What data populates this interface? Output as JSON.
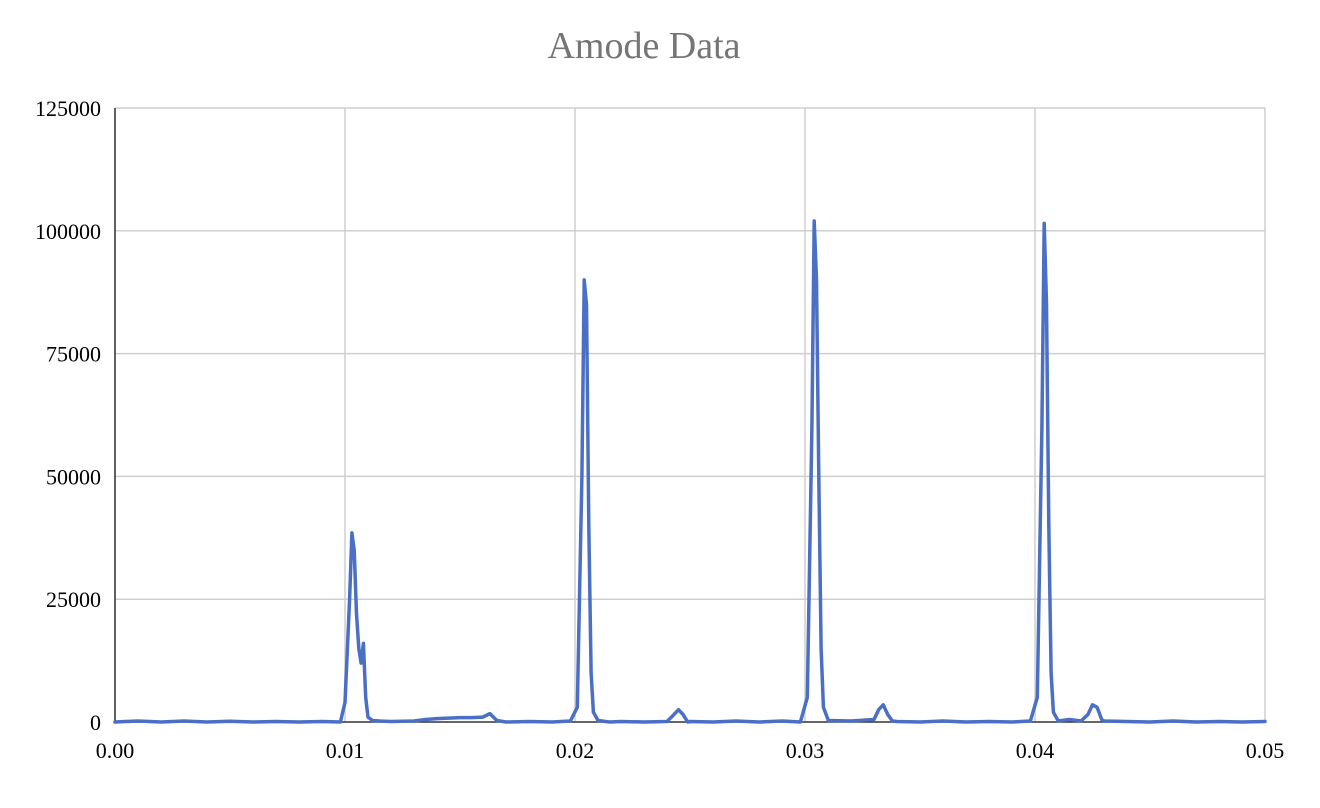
{
  "chart_data": {
    "type": "line",
    "title": "Amode Data",
    "xlabel": "",
    "ylabel": "",
    "xlim": [
      0,
      0.05
    ],
    "ylim": [
      0,
      125000
    ],
    "xticks": [
      0,
      0.01,
      0.02,
      0.03,
      0.04,
      0.05
    ],
    "xtick_labels": [
      "0.00",
      "0.01",
      "0.02",
      "0.03",
      "0.04",
      "0.05"
    ],
    "yticks": [
      0,
      25000,
      50000,
      75000,
      100000,
      125000
    ],
    "ytick_labels": [
      "0",
      "25000",
      "50000",
      "75000",
      "100000",
      "125000"
    ],
    "grid": true,
    "legend": "none",
    "colors": {
      "series": "#4a6fc5",
      "grid": "#cfcfcf",
      "title": "#757575"
    },
    "series": [
      {
        "points": [
          [
            0,
            0
          ],
          [
            0.001,
            200
          ],
          [
            0.002,
            0
          ],
          [
            0.003,
            200
          ],
          [
            0.004,
            0
          ],
          [
            0.005,
            150
          ],
          [
            0.006,
            0
          ],
          [
            0.007,
            100
          ],
          [
            0.008,
            0
          ],
          [
            0.009,
            100
          ],
          [
            0.0098,
            0
          ],
          [
            0.01,
            4000
          ],
          [
            0.0102,
            25000
          ],
          [
            0.0103,
            38500
          ],
          [
            0.0104,
            35000
          ],
          [
            0.0105,
            22000
          ],
          [
            0.0106,
            15000
          ],
          [
            0.0107,
            12000
          ],
          [
            0.0108,
            16000
          ],
          [
            0.0109,
            5000
          ],
          [
            0.011,
            1000
          ],
          [
            0.0112,
            300
          ],
          [
            0.0115,
            200
          ],
          [
            0.012,
            100
          ],
          [
            0.013,
            200
          ],
          [
            0.0135,
            500
          ],
          [
            0.014,
            700
          ],
          [
            0.0145,
            800
          ],
          [
            0.015,
            900
          ],
          [
            0.0155,
            900
          ],
          [
            0.016,
            1000
          ],
          [
            0.0163,
            1700
          ],
          [
            0.0166,
            300
          ],
          [
            0.017,
            0
          ],
          [
            0.018,
            100
          ],
          [
            0.019,
            0
          ],
          [
            0.0198,
            200
          ],
          [
            0.0201,
            3000
          ],
          [
            0.0203,
            50000
          ],
          [
            0.0204,
            90000
          ],
          [
            0.0205,
            85000
          ],
          [
            0.0206,
            40000
          ],
          [
            0.0207,
            10000
          ],
          [
            0.0208,
            2000
          ],
          [
            0.021,
            300
          ],
          [
            0.0215,
            0
          ],
          [
            0.022,
            100
          ],
          [
            0.023,
            0
          ],
          [
            0.024,
            100
          ],
          [
            0.0243,
            1500
          ],
          [
            0.0245,
            2500
          ],
          [
            0.0247,
            1500
          ],
          [
            0.0249,
            0
          ],
          [
            0.025,
            100
          ],
          [
            0.026,
            0
          ],
          [
            0.027,
            200
          ],
          [
            0.028,
            0
          ],
          [
            0.029,
            200
          ],
          [
            0.0298,
            0
          ],
          [
            0.0301,
            5000
          ],
          [
            0.0303,
            60000
          ],
          [
            0.0304,
            102000
          ],
          [
            0.0305,
            90000
          ],
          [
            0.0306,
            50000
          ],
          [
            0.0307,
            15000
          ],
          [
            0.0308,
            3000
          ],
          [
            0.031,
            500
          ],
          [
            0.031,
            300
          ],
          [
            0.032,
            200
          ],
          [
            0.033,
            500
          ],
          [
            0.0332,
            2500
          ],
          [
            0.0334,
            3500
          ],
          [
            0.0336,
            1500
          ],
          [
            0.0338,
            200
          ],
          [
            0.034,
            100
          ],
          [
            0.035,
            0
          ],
          [
            0.036,
            200
          ],
          [
            0.037,
            0
          ],
          [
            0.038,
            100
          ],
          [
            0.039,
            0
          ],
          [
            0.0398,
            200
          ],
          [
            0.0401,
            5000
          ],
          [
            0.0403,
            60000
          ],
          [
            0.0404,
            101500
          ],
          [
            0.0405,
            85000
          ],
          [
            0.0406,
            40000
          ],
          [
            0.0407,
            10000
          ],
          [
            0.0408,
            2000
          ],
          [
            0.041,
            300
          ],
          [
            0.041,
            200
          ],
          [
            0.0415,
            500
          ],
          [
            0.042,
            200
          ],
          [
            0.0423,
            1500
          ],
          [
            0.0425,
            3500
          ],
          [
            0.0427,
            3000
          ],
          [
            0.0429,
            500
          ],
          [
            0.043,
            200
          ],
          [
            0.044,
            100
          ],
          [
            0.045,
            0
          ],
          [
            0.046,
            200
          ],
          [
            0.047,
            0
          ],
          [
            0.048,
            100
          ],
          [
            0.049,
            0
          ],
          [
            0.05,
            100
          ]
        ]
      }
    ]
  }
}
